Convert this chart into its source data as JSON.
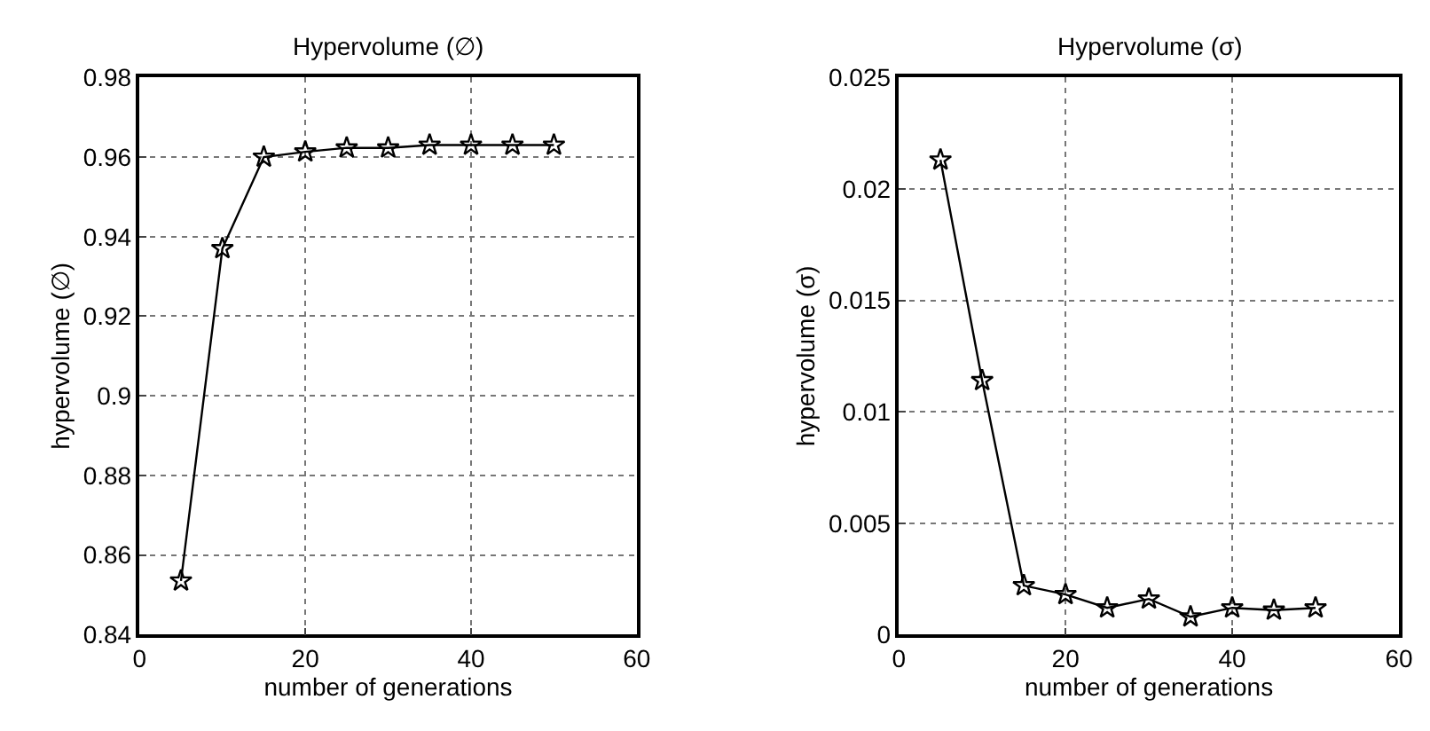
{
  "chart_data": [
    {
      "type": "line",
      "title": "Hypervolume (∅)",
      "xlabel": "number of generations",
      "ylabel": "hypervolume (∅)",
      "x": [
        5,
        10,
        15,
        20,
        25,
        30,
        35,
        40,
        45,
        50
      ],
      "series": [
        {
          "color": "#000000",
          "values": [
            0.8535,
            0.937,
            0.96,
            0.9613,
            0.9623,
            0.9623,
            0.963,
            0.963,
            0.963,
            0.963
          ]
        }
      ],
      "xlim": [
        0,
        60
      ],
      "xticks": [
        0,
        20,
        40,
        60
      ],
      "ylim": [
        0.84,
        0.98
      ],
      "yticks": [
        0.84,
        0.86,
        0.88,
        0.9,
        0.92,
        0.94,
        0.96,
        0.98
      ],
      "grid": true,
      "marker": "star",
      "line_style": "solid"
    },
    {
      "type": "line",
      "title": "Hypervolume (σ)",
      "xlabel": "number of generations",
      "ylabel": "hypervolume (σ)",
      "x": [
        5,
        10,
        15,
        20,
        25,
        30,
        35,
        40,
        45,
        50
      ],
      "series": [
        {
          "color": "#000000",
          "values": [
            0.0213,
            0.0114,
            0.0022,
            0.0018,
            0.0012,
            0.0016,
            0.0008,
            0.0012,
            0.0011,
            0.0012
          ]
        }
      ],
      "xlim": [
        0,
        60
      ],
      "xticks": [
        0,
        20,
        40,
        60
      ],
      "ylim": [
        0,
        0.025
      ],
      "yticks": [
        0,
        0.005,
        0.01,
        0.015,
        0.02,
        0.025
      ],
      "grid": true,
      "marker": "star",
      "line_style": "solid"
    }
  ]
}
